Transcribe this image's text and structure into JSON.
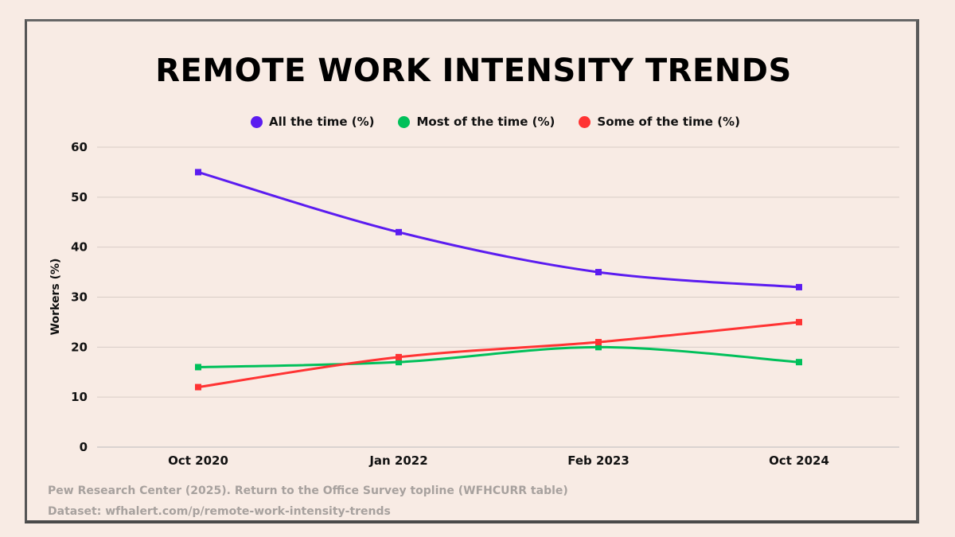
{
  "chart_data": {
    "type": "line",
    "title": "REMOTE WORK INTENSITY TRENDS",
    "xlabel": "",
    "ylabel": "Workers (%)",
    "categories": [
      "Oct 2020",
      "Jan 2022",
      "Feb 2023",
      "Oct 2024"
    ],
    "ylim": [
      0,
      60
    ],
    "yticks": [
      0,
      10,
      20,
      30,
      40,
      50,
      60
    ],
    "grid": true,
    "legend_position": "top",
    "series": [
      {
        "name": "All the time (%)",
        "color": "#5b1cf0",
        "values": [
          55,
          43,
          35,
          32
        ]
      },
      {
        "name": "Most of the time (%)",
        "color": "#00c05a",
        "values": [
          16,
          17,
          20,
          17
        ]
      },
      {
        "name": "Some of the time (%)",
        "color": "#ff3333",
        "values": [
          12,
          18,
          21,
          25
        ]
      }
    ]
  },
  "footer": {
    "source": "Pew Research Center (2025). Return to the Office Survey topline (WFHCURR table)",
    "dataset": "Dataset: wfhalert.com/p/remote-work-intensity-trends"
  }
}
